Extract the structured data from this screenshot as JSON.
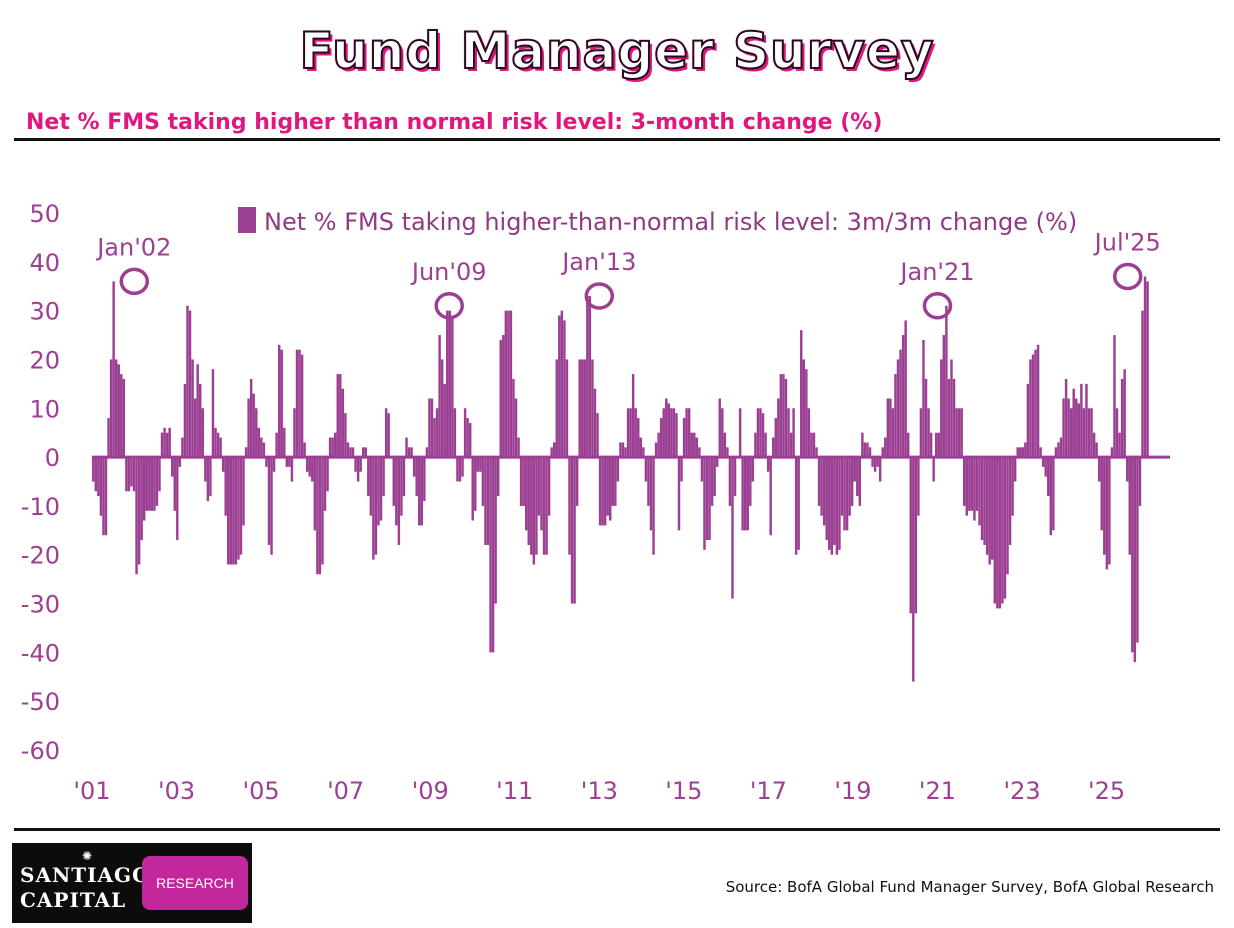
{
  "header": {
    "title": "Fund Manager Survey",
    "subtitle": "Net % FMS taking higher than normal risk level: 3-month change (%)"
  },
  "footer": {
    "logo_line1": "SANTIAGO",
    "logo_line2": "CAPITAL",
    "logo_badge": "RESEARCH",
    "source": "Source:  BofA Global Fund Manager Survey, BofA Global Research"
  },
  "colors": {
    "bar": "#9b3f92",
    "text": "#9d3f92",
    "accent": "#e0177f"
  },
  "chart_data": {
    "type": "bar",
    "title": "Net % FMS taking higher-than-normal risk level: 3m/3m change (%)",
    "legend": "Net % FMS taking higher-than-normal risk level: 3m/3m change (%)",
    "legend_position": "top",
    "xlabel": "",
    "ylabel": "",
    "x_start_year": 2001,
    "x_end_year": 2026,
    "xlim": [
      2001,
      2026.5
    ],
    "ylim": [
      -60,
      50
    ],
    "yticks": [
      "50",
      "40",
      "30",
      "20",
      "10",
      "0",
      "-10",
      "-20",
      "-30",
      "-40",
      "-50",
      "-60"
    ],
    "xticks": [
      "'01",
      "'03",
      "'05",
      "'07",
      "'09",
      "'11",
      "'13",
      "'15",
      "'17",
      "'19",
      "'21",
      "'23",
      "'25"
    ],
    "annotations": [
      {
        "label": "Jan'02",
        "x": 2002.0,
        "y": 36
      },
      {
        "label": "Jun'09",
        "x": 2009.45,
        "y": 31
      },
      {
        "label": "Jan'13",
        "x": 2013.0,
        "y": 33
      },
      {
        "label": "Jan'21",
        "x": 2021.0,
        "y": 31
      },
      {
        "label": "Jul'25",
        "x": 2025.5,
        "y": 37
      }
    ],
    "series": [
      {
        "name": "Net % FMS taking higher-than-normal risk level: 3m/3m change (%)",
        "values": [
          -5,
          -7,
          -8,
          -12,
          -16,
          -16,
          8,
          20,
          36,
          20,
          19,
          17,
          16,
          -7,
          -7,
          -6,
          -7,
          -24,
          -22,
          -17,
          -13,
          -11,
          -11,
          -11,
          -11,
          -10,
          -7,
          5,
          6,
          5,
          6,
          -4,
          -11,
          -17,
          -2,
          4,
          15,
          31,
          30,
          20,
          12,
          19,
          15,
          10,
          -5,
          -9,
          -8,
          18,
          6,
          5,
          4,
          -3,
          -12,
          -22,
          -22,
          -22,
          -22,
          -21,
          -20,
          -14,
          2,
          12,
          16,
          13,
          10,
          6,
          4,
          3,
          -2,
          -18,
          -20,
          -3,
          5,
          23,
          22,
          6,
          -2,
          -2,
          -5,
          10,
          22,
          22,
          21,
          3,
          -3,
          -4,
          -5,
          -15,
          -24,
          -24,
          -22,
          -11,
          -7,
          4,
          4,
          5,
          17,
          17,
          14,
          9,
          3,
          2,
          2,
          -3,
          -5,
          -3,
          2,
          2,
          -8,
          -12,
          -21,
          -20,
          -14,
          -13,
          -8,
          10,
          9,
          0,
          -10,
          -14,
          -18,
          -12,
          -8,
          4,
          2,
          2,
          -4,
          -8,
          -14,
          -14,
          -9,
          2,
          12,
          12,
          8,
          10,
          25,
          20,
          15,
          30,
          30,
          29,
          10,
          -5,
          -5,
          -4,
          10,
          8,
          7,
          -13,
          -11,
          -3,
          -3,
          -10,
          -18,
          -18,
          -40,
          -40,
          -30,
          -8,
          24,
          25,
          30,
          30,
          30,
          16,
          12,
          4,
          -10,
          -10,
          -15,
          -18,
          -20,
          -22,
          -20,
          -12,
          -15,
          -20,
          -20,
          -12,
          2,
          3,
          20,
          29,
          30,
          28,
          20,
          -20,
          -30,
          -30,
          -10,
          20,
          20,
          20,
          33,
          33,
          20,
          14,
          9,
          -14,
          -14,
          -14,
          -12,
          -13,
          -10,
          -10,
          -5,
          3,
          3,
          2,
          10,
          10,
          17,
          10,
          8,
          4,
          2,
          -5,
          -10,
          -15,
          -20,
          3,
          5,
          8,
          10,
          12,
          11,
          10,
          10,
          9,
          -15,
          -5,
          8,
          10,
          10,
          5,
          5,
          4,
          2,
          -5,
          -19,
          -17,
          -17,
          -10,
          -8,
          -2,
          12,
          10,
          5,
          2,
          -10,
          -29,
          -8,
          0,
          10,
          -15,
          -15,
          -15,
          -10,
          -5,
          5,
          10,
          10,
          9,
          5,
          -3,
          -16,
          4,
          8,
          12,
          17,
          17,
          16,
          10,
          5,
          10,
          -20,
          -19,
          26,
          20,
          18,
          10,
          5,
          5,
          2,
          -10,
          -12,
          -14,
          -17,
          -19,
          -20,
          -18,
          -20,
          -19,
          -12,
          -15,
          -15,
          -12,
          -10,
          -5,
          -8,
          -10,
          5,
          3,
          3,
          2,
          -2,
          -3,
          -2,
          -5,
          2,
          4,
          12,
          12,
          10,
          17,
          20,
          22,
          25,
          28,
          5,
          -32,
          -46,
          -32,
          -12,
          10,
          24,
          16,
          10,
          5,
          -5,
          5,
          5,
          20,
          25,
          31,
          16,
          20,
          16,
          10,
          10,
          10,
          -10,
          -12,
          -11,
          -11,
          -13,
          -11,
          -14,
          -17,
          -18,
          -20,
          -22,
          -21,
          -30,
          -31,
          -31,
          -30,
          -29,
          -24,
          -18,
          -12,
          -5,
          2,
          2,
          2,
          3,
          15,
          20,
          21,
          22,
          23,
          2,
          -2,
          -4,
          -8,
          -16,
          -15,
          2,
          3,
          4,
          12,
          16,
          12,
          10,
          14,
          12,
          11,
          15,
          10,
          15,
          10,
          10,
          5,
          3,
          -5,
          -15,
          -20,
          -23,
          -22,
          2,
          25,
          10,
          5,
          16,
          18,
          -5,
          -20,
          -40,
          -42,
          -38,
          -10,
          30,
          37,
          36
        ]
      }
    ]
  }
}
